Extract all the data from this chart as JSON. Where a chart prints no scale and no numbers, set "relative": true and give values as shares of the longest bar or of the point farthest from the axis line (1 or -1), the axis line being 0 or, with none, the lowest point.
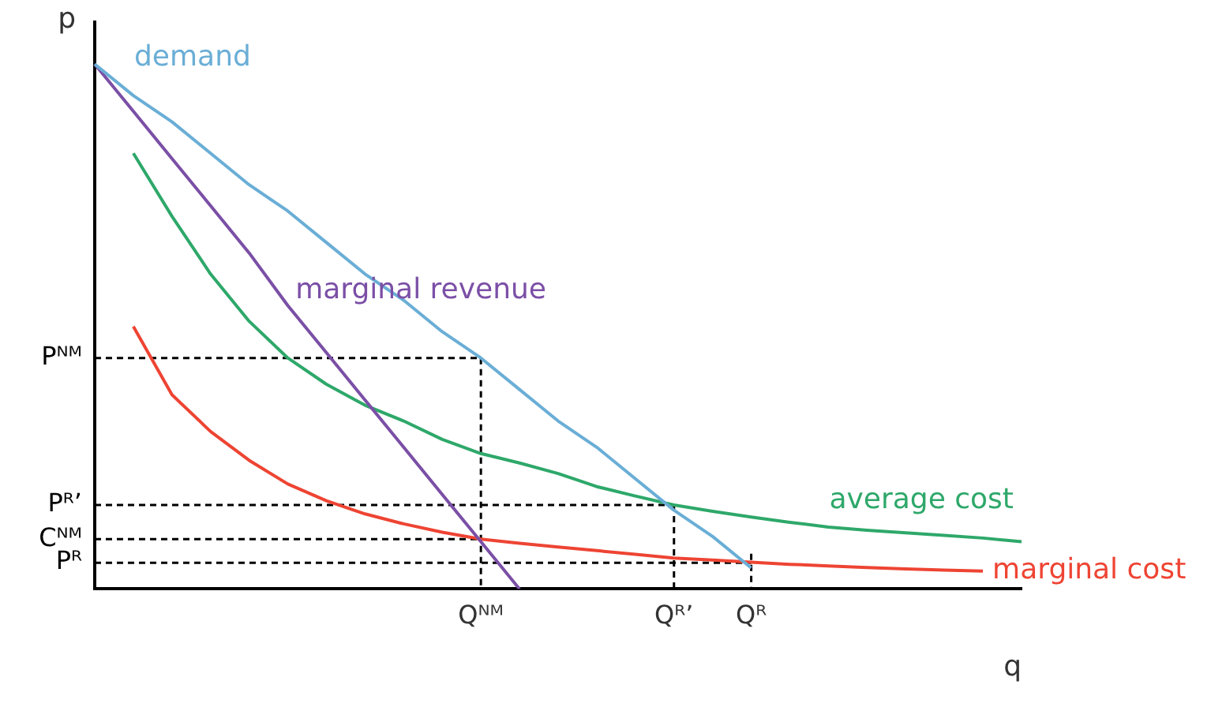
{
  "chart_data": {
    "type": "line",
    "xlabel": "q",
    "ylabel": "p",
    "relative": true,
    "categories": [
      null,
      null,
      null,
      null,
      null,
      null,
      null,
      null,
      null,
      null,
      "Qᴺᴹ",
      null,
      null,
      null,
      null,
      "Qᴿ’",
      null,
      "Qᴿ",
      null,
      null,
      null,
      null,
      null,
      null,
      null
    ],
    "legend": false,
    "marker": "none",
    "line_style": "solid",
    "series": [
      {
        "name": "demand",
        "color": "#6aaed6",
        "values": [
          1,
          0.94,
          0.89,
          0.83,
          0.77,
          0.72,
          0.66,
          0.6,
          0.55,
          0.49,
          0.44,
          0.38,
          0.32,
          0.27,
          0.21,
          0.15,
          0.1,
          0.04,
          null,
          null,
          null,
          null,
          null,
          null,
          null
        ]
      },
      {
        "name": "marginal revenue",
        "color": "#7b4fa6",
        "values": [
          1,
          0.91,
          0.82,
          0.73,
          0.64,
          0.54,
          0.45,
          0.36,
          0.27,
          0.18,
          0.09,
          0,
          null,
          null,
          null,
          null,
          null,
          null,
          null,
          null,
          null,
          null,
          null,
          null,
          null
        ]
      },
      {
        "name": "average cost",
        "color": "#2ea86a",
        "values": [
          null,
          0.83,
          0.71,
          0.6,
          0.51,
          0.44,
          0.39,
          0.35,
          0.32,
          0.285,
          0.258,
          0.24,
          0.22,
          0.195,
          0.177,
          0.16,
          0.148,
          0.137,
          0.127,
          0.118,
          0.112,
          0.107,
          0.102,
          0.097,
          0.09
        ]
      },
      {
        "name": "marginal cost",
        "color": "#ee4433",
        "values": [
          null,
          0.5,
          0.37,
          0.3,
          0.245,
          0.2,
          0.168,
          0.143,
          0.124,
          0.108,
          0.095,
          0.087,
          0.08,
          0.073,
          0.066,
          0.059,
          0.055,
          0.051,
          0.047,
          0.044,
          0.041,
          0.038,
          0.036,
          0.034,
          null
        ]
      },
      {
        "name": "Pᴺᴹ",
        "color": "#000000",
        "line_style": "dashed",
        "values": [
          0.44,
          0.44,
          0.44,
          0.44,
          0.44,
          0.44,
          0.44,
          0.44,
          0.44,
          0.44,
          0.44,
          null,
          null,
          null,
          null,
          null,
          null,
          null,
          null,
          null,
          null,
          null,
          null,
          null,
          null
        ]
      },
      {
        "color": "#000000",
        "line_style": "dashed",
        "x": [
          "Qᴺᴹ",
          "Qᴺᴹ"
        ],
        "values": [
          0.44,
          0
        ]
      },
      {
        "name": "Pᴿ’",
        "color": "#000000",
        "line_style": "dashed",
        "values": [
          0.16,
          0.16,
          0.16,
          0.16,
          0.16,
          0.16,
          0.16,
          0.16,
          0.16,
          0.16,
          0.16,
          0.16,
          0.16,
          0.16,
          0.16,
          0.16,
          null,
          null,
          null,
          null,
          null,
          null,
          null,
          null,
          null
        ]
      },
      {
        "color": "#000000",
        "line_style": "dashed",
        "x": [
          "Qᴿ’",
          "Qᴿ’"
        ],
        "values": [
          0.16,
          0
        ]
      },
      {
        "name": "Cᴺᴹ",
        "color": "#000000",
        "line_style": "dashed",
        "values": [
          0.095,
          0.095,
          0.095,
          0.095,
          0.095,
          0.095,
          0.095,
          0.095,
          0.095,
          0.095,
          0.095,
          null,
          null,
          null,
          null,
          null,
          null,
          null,
          null,
          null,
          null,
          null,
          null,
          null,
          null
        ]
      },
      {
        "name": "Pᴿ",
        "color": "#000000",
        "line_style": "dashed",
        "values": [
          0.05,
          0.05,
          0.05,
          0.05,
          0.05,
          0.05,
          0.05,
          0.05,
          0.05,
          0.05,
          0.05,
          0.05,
          0.05,
          0.05,
          0.05,
          0.05,
          0.05,
          0.05,
          null,
          null,
          null,
          null,
          null,
          null,
          null
        ]
      },
      {
        "color": "#000000",
        "line_style": "dashed",
        "x": [
          "Qᴿ",
          "Qᴿ"
        ],
        "values": [
          0.067,
          0
        ]
      }
    ]
  }
}
